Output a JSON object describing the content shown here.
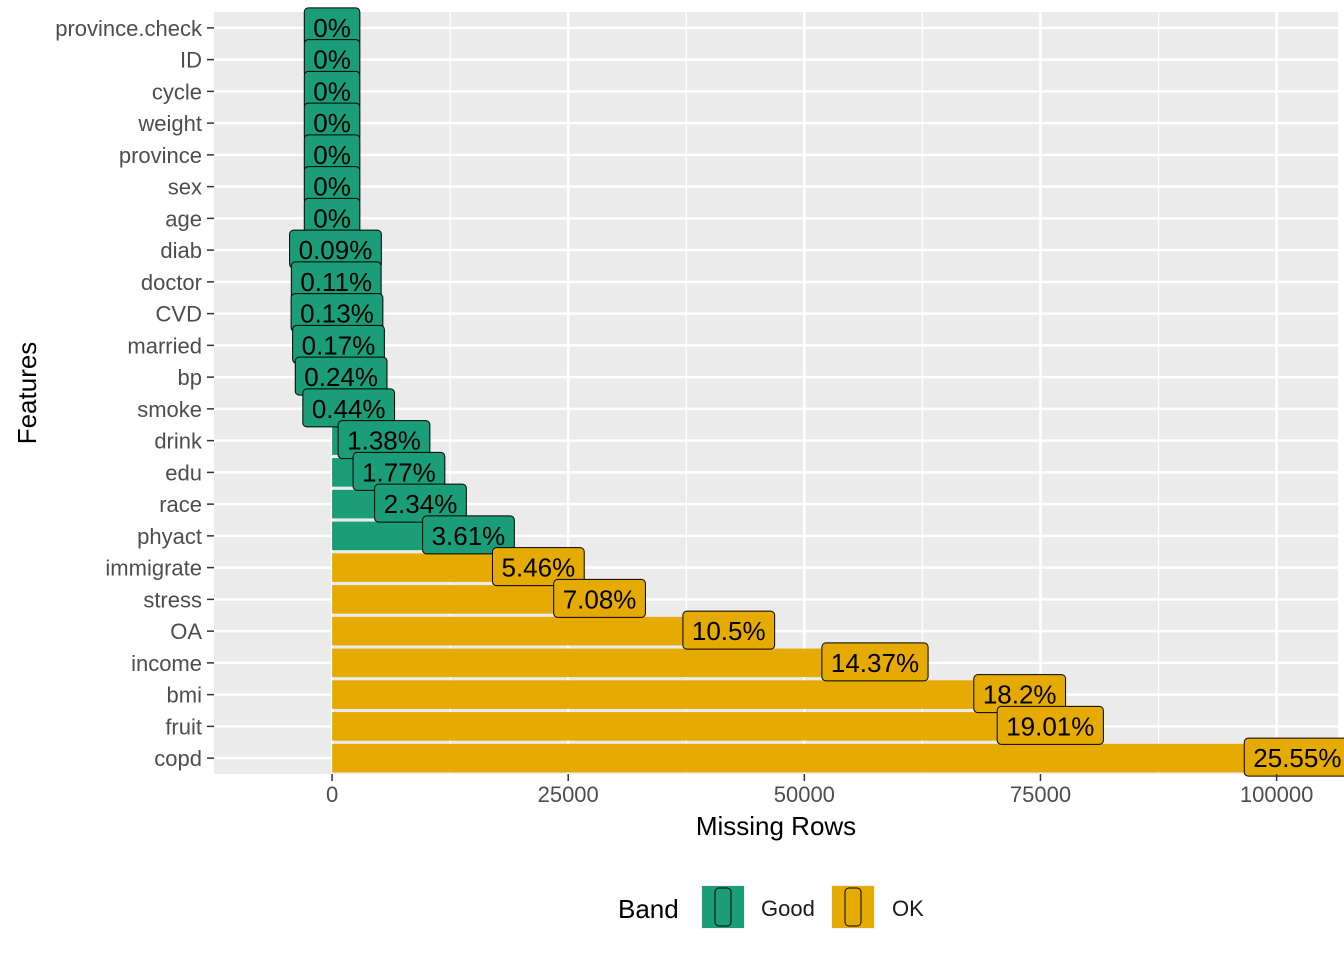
{
  "chart_data": {
    "type": "bar",
    "orientation": "horizontal",
    "xlabel": "Missing Rows",
    "ylabel": "Features",
    "xlim": [
      -12500,
      106500
    ],
    "xticks": [
      0,
      25000,
      50000,
      75000,
      100000
    ],
    "xtick_labels": [
      "0",
      "25000",
      "50000",
      "75000",
      "100000"
    ],
    "grid": true,
    "legend": {
      "title": "Band",
      "position": "bottom",
      "entries": [
        {
          "label": "Good",
          "color": "#1b9e77"
        },
        {
          "label": "OK",
          "color": "#e6ab02"
        }
      ]
    },
    "categories": [
      "province.check",
      "ID",
      "cycle",
      "weight",
      "province",
      "sex",
      "age",
      "diab",
      "doctor",
      "CVD",
      "married",
      "bp",
      "smoke",
      "drink",
      "edu",
      "race",
      "phyact",
      "immigrate",
      "stress",
      "OA",
      "income",
      "bmi",
      "fruit",
      "copd"
    ],
    "values": [
      0,
      0,
      0,
      0,
      0,
      0,
      0,
      360,
      440,
      520,
      680,
      960,
      1760,
      5500,
      7080,
      9360,
      14440,
      21840,
      28320,
      42000,
      57480,
      72800,
      76040,
      102200
    ],
    "labels": [
      "0%",
      "0%",
      "0%",
      "0%",
      "0%",
      "0%",
      "0%",
      "0.09%",
      "0.11%",
      "0.13%",
      "0.17%",
      "0.24%",
      "0.44%",
      "1.38%",
      "1.77%",
      "2.34%",
      "3.61%",
      "5.46%",
      "7.08%",
      "10.5%",
      "14.37%",
      "18.2%",
      "19.01%",
      "25.55%"
    ],
    "bands": [
      "Good",
      "Good",
      "Good",
      "Good",
      "Good",
      "Good",
      "Good",
      "Good",
      "Good",
      "Good",
      "Good",
      "Good",
      "Good",
      "Good",
      "Good",
      "Good",
      "Good",
      "OK",
      "OK",
      "OK",
      "OK",
      "OK",
      "OK",
      "OK"
    ]
  }
}
